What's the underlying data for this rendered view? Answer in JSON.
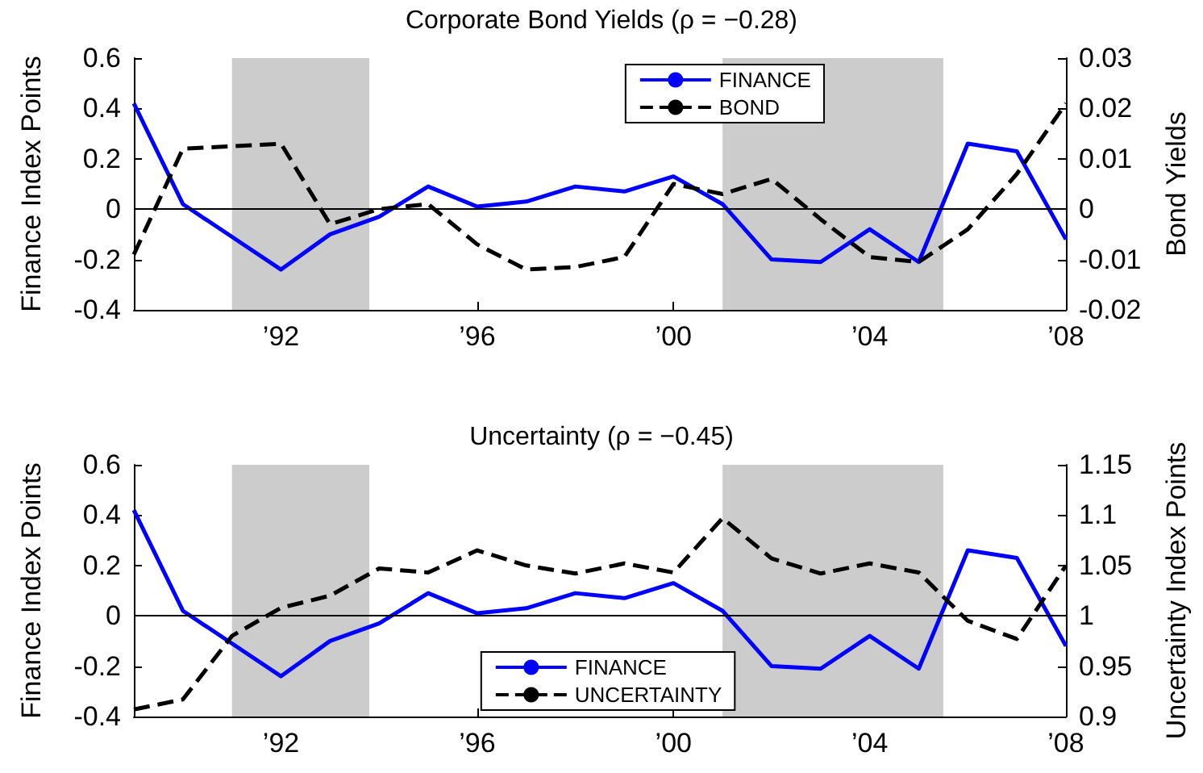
{
  "chart_data": [
    {
      "type": "line",
      "title": "Corporate Bond Yields (ρ = −0.28)",
      "ylabel": "Finance Index Points",
      "y2label": "Bond Yields",
      "x": [
        1989,
        1990,
        1991,
        1992,
        1993,
        1994,
        1995,
        1996,
        1997,
        1998,
        1999,
        2000,
        2001,
        2002,
        2003,
        2004,
        2005,
        2006,
        2007,
        2008
      ],
      "series": [
        {
          "name": "FINANCE",
          "color": "#0000ff",
          "line_style": "solid",
          "values": [
            0.42,
            0.02,
            -0.11,
            -0.24,
            -0.1,
            -0.03,
            0.09,
            0.01,
            0.03,
            0.09,
            0.07,
            0.13,
            0.02,
            -0.2,
            -0.21,
            -0.08,
            -0.21,
            0.26,
            0.23,
            -0.12
          ]
        },
        {
          "name": "BOND",
          "color": "#000000",
          "line_style": "dashed",
          "axis": "y2",
          "values": [
            -0.009,
            0.012,
            0.0125,
            0.013,
            -0.003,
            0,
            0.001,
            -0.007,
            -0.012,
            -0.0115,
            -0.0095,
            0.005,
            0.003,
            0.006,
            -0.002,
            -0.0095,
            -0.0105,
            -0.004,
            0.007,
            0.021
          ]
        }
      ],
      "xlim": [
        1989,
        2008
      ],
      "xticks": [
        {
          "value": 1992,
          "label": "’92"
        },
        {
          "value": 1996,
          "label": "’96"
        },
        {
          "value": 2000,
          "label": "’00"
        },
        {
          "value": 2004,
          "label": "’04"
        },
        {
          "value": 2008,
          "label": "’08"
        }
      ],
      "ylim": [
        -0.4,
        0.6
      ],
      "yticks": [
        -0.4,
        -0.2,
        0,
        0.2,
        0.4,
        0.6
      ],
      "y2lim": [
        -0.02,
        0.03
      ],
      "y2ticks": [
        -0.02,
        -0.01,
        0,
        0.01,
        0.02,
        0.03
      ],
      "ref_lines": [
        {
          "axis": "y",
          "value": 0,
          "color": "#000000"
        }
      ],
      "bands": [
        {
          "axis": "x",
          "from": 1991,
          "to": 1993.8,
          "color": "#cccccc"
        },
        {
          "axis": "x",
          "from": 2001,
          "to": 2005.5,
          "color": "#cccccc"
        }
      ],
      "legend": "top",
      "grid": false,
      "marker": "none"
    },
    {
      "type": "line",
      "title": "Uncertainty (ρ = −0.45)",
      "ylabel": "Finance Index Points",
      "y2label": "Uncertainty Index Points",
      "x": [
        1989,
        1990,
        1991,
        1992,
        1993,
        1994,
        1995,
        1996,
        1997,
        1998,
        1999,
        2000,
        2001,
        2002,
        2003,
        2004,
        2005,
        2006,
        2007,
        2008
      ],
      "series": [
        {
          "name": "FINANCE",
          "color": "#0000ff",
          "line_style": "solid",
          "values": [
            0.42,
            0.02,
            -0.11,
            -0.24,
            -0.1,
            -0.03,
            0.09,
            0.01,
            0.03,
            0.09,
            0.07,
            0.13,
            0.02,
            -0.2,
            -0.21,
            -0.08,
            -0.21,
            0.26,
            0.23,
            -0.12
          ]
        },
        {
          "name": "UNCERTAINTY",
          "color": "#000000",
          "line_style": "dashed",
          "axis": "y2",
          "values": [
            0.907,
            0.917,
            0.98,
            1.008,
            1.02,
            1.047,
            1.043,
            1.065,
            1.05,
            1.042,
            1.052,
            1.043,
            1.097,
            1.057,
            1.042,
            1.052,
            1.043,
            0.995,
            0.977,
            1.05
          ]
        }
      ],
      "xlim": [
        1989,
        2008
      ],
      "xticks": [
        {
          "value": 1992,
          "label": "’92"
        },
        {
          "value": 1996,
          "label": "’96"
        },
        {
          "value": 2000,
          "label": "’00"
        },
        {
          "value": 2004,
          "label": "’04"
        },
        {
          "value": 2008,
          "label": "’08"
        }
      ],
      "ylim": [
        -0.4,
        0.6
      ],
      "yticks": [
        -0.4,
        -0.2,
        0,
        0.2,
        0.4,
        0.6
      ],
      "y2lim": [
        0.9,
        1.15
      ],
      "y2ticks": [
        0.9,
        0.95,
        1,
        1.05,
        1.1,
        1.15
      ],
      "ref_lines": [
        {
          "axis": "y",
          "value": 0,
          "color": "#000000"
        }
      ],
      "bands": [
        {
          "axis": "x",
          "from": 1991,
          "to": 1993.8,
          "color": "#cccccc"
        },
        {
          "axis": "x",
          "from": 2001,
          "to": 2005.5,
          "color": "#cccccc"
        }
      ],
      "legend": "bottom",
      "grid": false,
      "marker": "none"
    }
  ]
}
